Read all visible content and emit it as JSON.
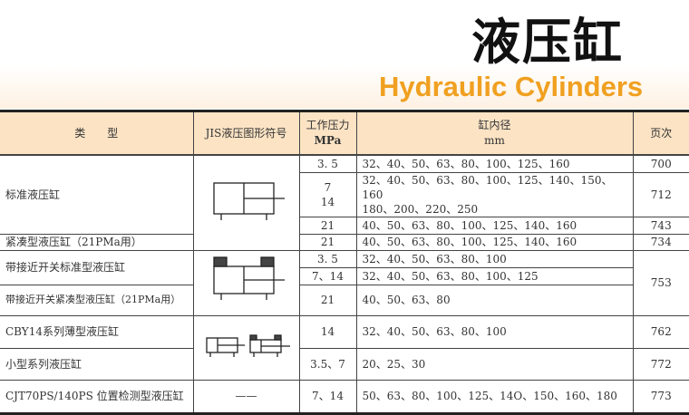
{
  "title_cn": "液压缸",
  "title_en": "Hydraulic Cylinders",
  "colors": {
    "accent": "#f0a020",
    "header_bg": "#fbe3c4"
  },
  "headers": {
    "type": "类　　型",
    "symbol": "JIS液压图形符号",
    "pressure": "工作压力",
    "pressure_unit": "MPa",
    "bore": "缸内径",
    "bore_unit": "mm",
    "page": "页次"
  },
  "rows": [
    {
      "type": "标准液压缸",
      "pressure": "3. 5",
      "bore": "32、40、50、63、80、100、125、160",
      "page": "700"
    },
    {
      "pressure": "7",
      "pressure2": "14",
      "bore": "32、40、50、63、80、100、125、140、150、160",
      "bore2": "180、200、220、250",
      "page": "712"
    },
    {
      "pressure": "21",
      "bore": "40、50、63、80、100、125、140、160",
      "page": "743"
    },
    {
      "type": "紧凑型液压缸（21PMa用）",
      "pressure": "21",
      "bore": "40、50、63、80、100、125、140、160",
      "page": "734"
    },
    {
      "type": "带接近开关标准型液压缸",
      "pressure": "3. 5",
      "bore": "32、40、50、63、80、100",
      "page": "753"
    },
    {
      "pressure": "7、14",
      "bore": "32、40、50、63、80、100、125"
    },
    {
      "type": "带接近开关紧凑型液压缸（21PMa用）",
      "pressure": "21",
      "bore": "40、50、63、80"
    },
    {
      "type": "CBY14系列薄型液压缸",
      "pressure": "14",
      "bore": "32、40、50、63、80、100",
      "page": "762"
    },
    {
      "type": "小型系列液压缸",
      "pressure": "3.5、7",
      "bore": "20、25、30",
      "page": "772"
    },
    {
      "type": "CJT70PS/140PS 位置检测型液压缸",
      "symbol": "——",
      "pressure": "7、14",
      "bore": "50、63、80、100、125、14O、150、160、180",
      "page": "773"
    }
  ]
}
